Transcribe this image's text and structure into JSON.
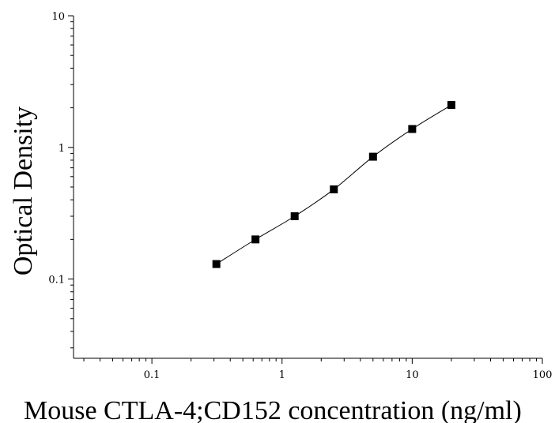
{
  "chart_data": {
    "type": "scatter",
    "xlabel": "Mouse CTLA-4;CD152 concentration (ng/ml)",
    "ylabel": "Optical Density",
    "x_scale": "log",
    "y_scale": "log",
    "xlim": [
      0.025,
      100
    ],
    "ylim": [
      0.025,
      10
    ],
    "x_ticks": [
      {
        "value": 0.1,
        "label": "0.1"
      },
      {
        "value": 1,
        "label": "1"
      },
      {
        "value": 10,
        "label": "10"
      },
      {
        "value": 100,
        "label": "100"
      }
    ],
    "y_ticks": [
      {
        "value": 0.1,
        "label": "0.1"
      },
      {
        "value": 1,
        "label": "1"
      },
      {
        "value": 10,
        "label": "10"
      }
    ],
    "grid": false,
    "legend": "none",
    "marker_color": "#000000",
    "line_color": "#000000",
    "series": [
      {
        "marker": "square",
        "fit": "smooth-curve",
        "x": [
          0.313,
          0.625,
          1.25,
          2.5,
          5,
          10,
          20
        ],
        "y": [
          0.13,
          0.2,
          0.3,
          0.48,
          0.85,
          1.38,
          2.1
        ]
      }
    ]
  }
}
